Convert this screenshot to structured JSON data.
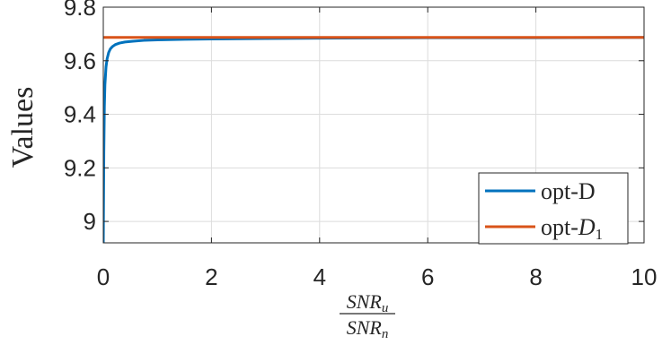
{
  "chart_data": {
    "type": "line",
    "title": "",
    "ylabel": "Values",
    "xlabel": {
      "numerator": "SNR",
      "numerator_sub": "u",
      "denominator": "SNR",
      "denominator_sub": "n"
    },
    "xlim": [
      0,
      10
    ],
    "ylim": [
      8.92,
      9.8
    ],
    "xticks": [
      0,
      2,
      4,
      6,
      8,
      10
    ],
    "yticks": [
      9,
      9.2,
      9.4,
      9.6,
      9.8
    ],
    "xtick_labels": [
      "0",
      "2",
      "4",
      "6",
      "8",
      "10"
    ],
    "ytick_labels": [
      "9",
      "9.2",
      "9.4",
      "9.6",
      "9.8"
    ],
    "grid": true,
    "legend_position": "bottom-right",
    "series": [
      {
        "name": "opt-D",
        "color": "#0072BD",
        "x": [
          0.0,
          0.01,
          0.02,
          0.03,
          0.05,
          0.07,
          0.1,
          0.13,
          0.17,
          0.22,
          0.3,
          0.4,
          0.55,
          0.75,
          1.0,
          1.5,
          2.0,
          3.0,
          4.0,
          5.0,
          6.0,
          8.0,
          10.0
        ],
        "y": [
          8.92,
          9.26,
          9.43,
          9.51,
          9.576,
          9.607,
          9.631,
          9.644,
          9.653,
          9.66,
          9.666,
          9.67,
          9.673,
          9.676,
          9.678,
          9.68,
          9.681,
          9.683,
          9.684,
          9.685,
          9.686,
          9.686,
          9.687
        ]
      },
      {
        "name": "opt-D",
        "name_sub": "1",
        "color": "#D95319",
        "x": [
          0,
          10
        ],
        "y": [
          9.687,
          9.687
        ]
      }
    ]
  }
}
